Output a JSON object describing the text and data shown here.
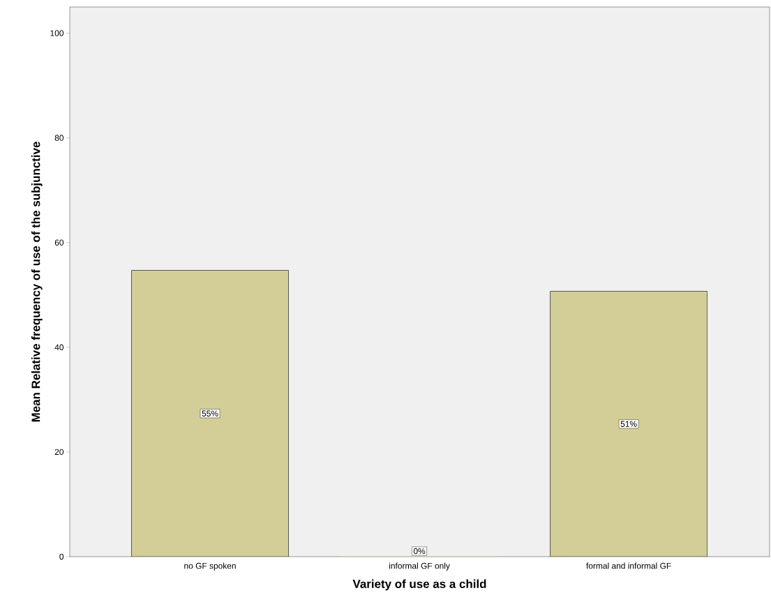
{
  "chart_data": {
    "type": "bar",
    "xlabel": "Variety of use as a child",
    "ylabel": "Mean Relative frequency of use of the subjunctive",
    "categories": [
      "no GF spoken",
      "informal GF only",
      "formal and informal GF"
    ],
    "values": [
      54.7,
      0,
      50.7
    ],
    "value_labels": [
      "55%",
      "0%",
      "51%"
    ],
    "color": "#d3ce97",
    "ylim": [
      0,
      105
    ],
    "yticks": [
      0,
      20,
      40,
      60,
      80,
      100
    ],
    "grid": false
  }
}
